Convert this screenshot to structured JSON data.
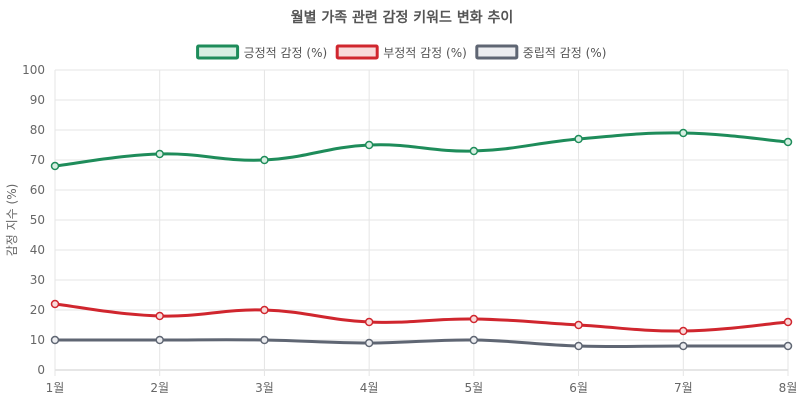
{
  "chart_data": {
    "type": "line",
    "title": "월별 가족 관련 감정 키워드 변화 추이",
    "ylabel": "감정 지수 (%)",
    "xlabel": "",
    "categories": [
      "1월",
      "2월",
      "3월",
      "4월",
      "5월",
      "6월",
      "7월",
      "8월"
    ],
    "ylim": [
      0,
      100
    ],
    "yticks": [
      "0",
      "10",
      "20",
      "30",
      "40",
      "50",
      "60",
      "70",
      "80",
      "90",
      "100"
    ],
    "grid": true,
    "legend_position": "top",
    "series": [
      {
        "name": "긍정적 감정 (%)",
        "color": "#1e8c5a",
        "fill": "#d7efe2",
        "values": [
          68,
          72,
          70,
          75,
          73,
          77,
          79,
          76
        ]
      },
      {
        "name": "부정적 감정 (%)",
        "color": "#d0262e",
        "fill": "#f8dada",
        "values": [
          22,
          18,
          20,
          16,
          17,
          15,
          13,
          16
        ]
      },
      {
        "name": "중립적 감정 (%)",
        "color": "#5f6673",
        "fill": "#ecedf0",
        "values": [
          10,
          10,
          10,
          9,
          10,
          8,
          8,
          8
        ]
      }
    ]
  }
}
